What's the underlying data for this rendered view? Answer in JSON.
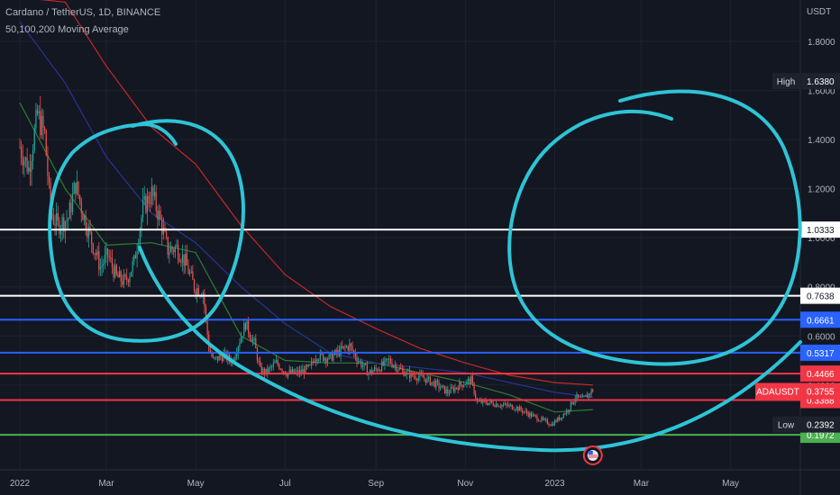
{
  "header": {
    "symbol_line": "Cardano / TetherUS, 1D, BINANCE",
    "indicator_line": "50,100,200 Moving Average"
  },
  "axis": {
    "currency": "USDT"
  },
  "colors": {
    "background": "#131722",
    "bull": "#26a69a",
    "bear": "#ef5350",
    "grid": "#1e222d",
    "annotation": "#2ec4d6"
  },
  "chart_data": {
    "type": "candlestick",
    "ylim": [
      0.17,
      2.0
    ],
    "y_ticks": [
      0.4,
      0.6,
      0.8,
      1.0,
      1.2,
      1.4,
      1.6,
      1.8
    ],
    "x_ticks": [
      "2022",
      "Mar",
      "May",
      "Jul",
      "Sep",
      "Nov",
      "2023",
      "Mar",
      "May"
    ],
    "grid": true,
    "legend": "top-left",
    "price_path": [
      {
        "date": "2022-01-01",
        "close": 1.37
      },
      {
        "date": "2022-01-07",
        "close": 1.28
      },
      {
        "date": "2022-01-13",
        "close": 1.5
      },
      {
        "date": "2022-01-18",
        "close": 1.42
      },
      {
        "date": "2022-01-22",
        "close": 1.1
      },
      {
        "date": "2022-01-27",
        "close": 1.05
      },
      {
        "date": "2022-02-03",
        "close": 1.08
      },
      {
        "date": "2022-02-08",
        "close": 1.22
      },
      {
        "date": "2022-02-14",
        "close": 1.08
      },
      {
        "date": "2022-02-20",
        "close": 0.97
      },
      {
        "date": "2022-02-25",
        "close": 0.88
      },
      {
        "date": "2022-03-02",
        "close": 0.93
      },
      {
        "date": "2022-03-08",
        "close": 0.84
      },
      {
        "date": "2022-03-14",
        "close": 0.82
      },
      {
        "date": "2022-03-20",
        "close": 0.9
      },
      {
        "date": "2022-03-26",
        "close": 1.12
      },
      {
        "date": "2022-04-01",
        "close": 1.18
      },
      {
        "date": "2022-04-06",
        "close": 1.09
      },
      {
        "date": "2022-04-12",
        "close": 0.95
      },
      {
        "date": "2022-04-18",
        "close": 0.96
      },
      {
        "date": "2022-04-24",
        "close": 0.9
      },
      {
        "date": "2022-04-30",
        "close": 0.8
      },
      {
        "date": "2022-05-06",
        "close": 0.78
      },
      {
        "date": "2022-05-10",
        "close": 0.55
      },
      {
        "date": "2022-05-13",
        "close": 0.5
      },
      {
        "date": "2022-05-20",
        "close": 0.52
      },
      {
        "date": "2022-05-26",
        "close": 0.5
      },
      {
        "date": "2022-06-01",
        "close": 0.6
      },
      {
        "date": "2022-06-04",
        "close": 0.65
      },
      {
        "date": "2022-06-10",
        "close": 0.57
      },
      {
        "date": "2022-06-14",
        "close": 0.46
      },
      {
        "date": "2022-06-18",
        "close": 0.45
      },
      {
        "date": "2022-06-25",
        "close": 0.49
      },
      {
        "date": "2022-07-02",
        "close": 0.45
      },
      {
        "date": "2022-07-10",
        "close": 0.45
      },
      {
        "date": "2022-07-18",
        "close": 0.47
      },
      {
        "date": "2022-07-22",
        "close": 0.52
      },
      {
        "date": "2022-07-31",
        "close": 0.51
      },
      {
        "date": "2022-08-08",
        "close": 0.54
      },
      {
        "date": "2022-08-14",
        "close": 0.56
      },
      {
        "date": "2022-08-20",
        "close": 0.5
      },
      {
        "date": "2022-08-27",
        "close": 0.45
      },
      {
        "date": "2022-09-03",
        "close": 0.47
      },
      {
        "date": "2022-09-10",
        "close": 0.5
      },
      {
        "date": "2022-09-18",
        "close": 0.46
      },
      {
        "date": "2022-09-25",
        "close": 0.44
      },
      {
        "date": "2022-10-03",
        "close": 0.43
      },
      {
        "date": "2022-10-13",
        "close": 0.4
      },
      {
        "date": "2022-10-20",
        "close": 0.37
      },
      {
        "date": "2022-10-28",
        "close": 0.4
      },
      {
        "date": "2022-11-05",
        "close": 0.42
      },
      {
        "date": "2022-11-09",
        "close": 0.33
      },
      {
        "date": "2022-11-15",
        "close": 0.33
      },
      {
        "date": "2022-11-25",
        "close": 0.32
      },
      {
        "date": "2022-12-05",
        "close": 0.31
      },
      {
        "date": "2022-12-15",
        "close": 0.28
      },
      {
        "date": "2022-12-22",
        "close": 0.26
      },
      {
        "date": "2022-12-30",
        "close": 0.24
      },
      {
        "date": "2023-01-05",
        "close": 0.27
      },
      {
        "date": "2023-01-10",
        "close": 0.3
      },
      {
        "date": "2023-01-15",
        "close": 0.35
      },
      {
        "date": "2023-01-20",
        "close": 0.34
      },
      {
        "date": "2023-01-27",
        "close": 0.38
      }
    ],
    "moving_averages": [
      {
        "name": "MA50",
        "color": "#2e7d32",
        "points": [
          {
            "date": "2022-01-01",
            "value": 1.55
          },
          {
            "date": "2022-02-01",
            "value": 1.2
          },
          {
            "date": "2022-03-01",
            "value": 0.97
          },
          {
            "date": "2022-04-01",
            "value": 0.98
          },
          {
            "date": "2022-05-01",
            "value": 0.94
          },
          {
            "date": "2022-06-01",
            "value": 0.6
          },
          {
            "date": "2022-07-01",
            "value": 0.5
          },
          {
            "date": "2022-08-01",
            "value": 0.49
          },
          {
            "date": "2022-09-01",
            "value": 0.49
          },
          {
            "date": "2022-10-01",
            "value": 0.45
          },
          {
            "date": "2022-11-01",
            "value": 0.41
          },
          {
            "date": "2022-12-01",
            "value": 0.36
          },
          {
            "date": "2023-01-01",
            "value": 0.29
          },
          {
            "date": "2023-01-27",
            "value": 0.3
          }
        ]
      },
      {
        "name": "MA100",
        "color": "#283593",
        "points": [
          {
            "date": "2022-01-01",
            "value": 1.88
          },
          {
            "date": "2022-02-01",
            "value": 1.63
          },
          {
            "date": "2022-03-01",
            "value": 1.33
          },
          {
            "date": "2022-04-01",
            "value": 1.1
          },
          {
            "date": "2022-05-01",
            "value": 0.98
          },
          {
            "date": "2022-06-01",
            "value": 0.8
          },
          {
            "date": "2022-07-01",
            "value": 0.65
          },
          {
            "date": "2022-08-01",
            "value": 0.53
          },
          {
            "date": "2022-09-01",
            "value": 0.49
          },
          {
            "date": "2022-10-01",
            "value": 0.47
          },
          {
            "date": "2022-11-01",
            "value": 0.45
          },
          {
            "date": "2022-12-01",
            "value": 0.41
          },
          {
            "date": "2023-01-01",
            "value": 0.37
          },
          {
            "date": "2023-01-27",
            "value": 0.35
          }
        ]
      },
      {
        "name": "MA200",
        "color": "#c62828",
        "points": [
          {
            "date": "2022-01-01",
            "value": 1.98
          },
          {
            "date": "2022-02-01",
            "value": 1.96
          },
          {
            "date": "2022-03-01",
            "value": 1.7
          },
          {
            "date": "2022-04-01",
            "value": 1.45
          },
          {
            "date": "2022-05-01",
            "value": 1.3
          },
          {
            "date": "2022-06-01",
            "value": 1.05
          },
          {
            "date": "2022-07-01",
            "value": 0.85
          },
          {
            "date": "2022-08-01",
            "value": 0.72
          },
          {
            "date": "2022-09-01",
            "value": 0.63
          },
          {
            "date": "2022-10-01",
            "value": 0.55
          },
          {
            "date": "2022-11-01",
            "value": 0.49
          },
          {
            "date": "2022-12-01",
            "value": 0.44
          },
          {
            "date": "2023-01-01",
            "value": 0.41
          },
          {
            "date": "2023-01-27",
            "value": 0.4
          }
        ]
      }
    ],
    "horizontal_levels": [
      {
        "price": 1.0333,
        "label": "1.0333",
        "color": "#ffffff"
      },
      {
        "price": 0.7638,
        "label": "0.7638",
        "color": "#ffffff"
      },
      {
        "price": 0.6661,
        "label": "0.6661",
        "color": "#2962ff"
      },
      {
        "price": 0.5317,
        "label": "0.5317",
        "color": "#2962ff"
      },
      {
        "price": 0.4466,
        "label": "0.4466",
        "color": "#f23645"
      },
      {
        "price": 0.3388,
        "label": "0.3388",
        "color": "#f23645"
      },
      {
        "price": 0.1972,
        "label": "0.1972",
        "color": "#4caf50"
      }
    ],
    "markers": [
      {
        "name": "High",
        "price": 1.638,
        "label": "1.6380"
      },
      {
        "name": "Low",
        "price": 0.2392,
        "label": "0.2392"
      }
    ],
    "last_price": {
      "symbol": "ADAUSDT",
      "price": 0.3755,
      "label": "0.3755"
    }
  }
}
